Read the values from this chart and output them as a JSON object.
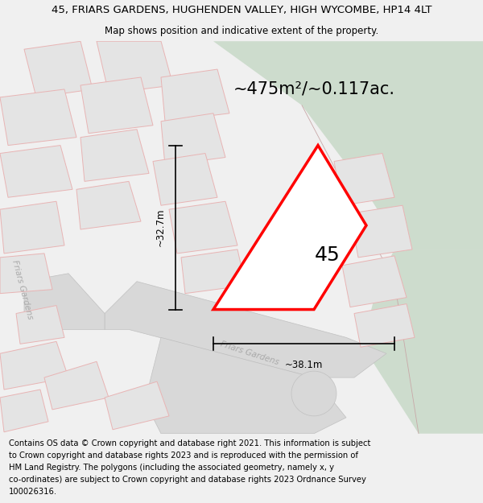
{
  "title_line1": "45, FRIARS GARDENS, HUGHENDEN VALLEY, HIGH WYCOMBE, HP14 4LT",
  "title_line2": "Map shows position and indicative extent of the property.",
  "area_label": "~475m²/~0.117ac.",
  "plot_number": "45",
  "dim_width": "~38.1m",
  "dim_height": "~32.7m",
  "street_label_diagonal": "Friars Gardens",
  "street_label_left": "Friars Gardens",
  "footer_lines": [
    "Contains OS data © Crown copyright and database right 2021. This information is subject",
    "to Crown copyright and database rights 2023 and is reproduced with the permission of",
    "HM Land Registry. The polygons (including the associated geometry, namely x, y",
    "co-ordinates) are subject to Crown copyright and database rights 2023 Ordnance Survey",
    "100026316."
  ],
  "bg_color": "#f0f0f0",
  "map_bg": "#ffffff",
  "green_color": "#cddccd",
  "road_color": "#d8d8d8",
  "building_fill": "#e4e4e4",
  "building_outline": "#e8b4b4",
  "plot_fill": "#ffffff",
  "plot_outline": "#ff0000",
  "dim_color": "#000000",
  "text_color": "#000000",
  "gray_text": "#aaaaaa",
  "title_fontsize": 9.5,
  "subtitle_fontsize": 8.5,
  "area_fontsize": 15,
  "plot_num_fontsize": 18,
  "footer_fontsize": 7.2,
  "street_fontsize": 7.5
}
